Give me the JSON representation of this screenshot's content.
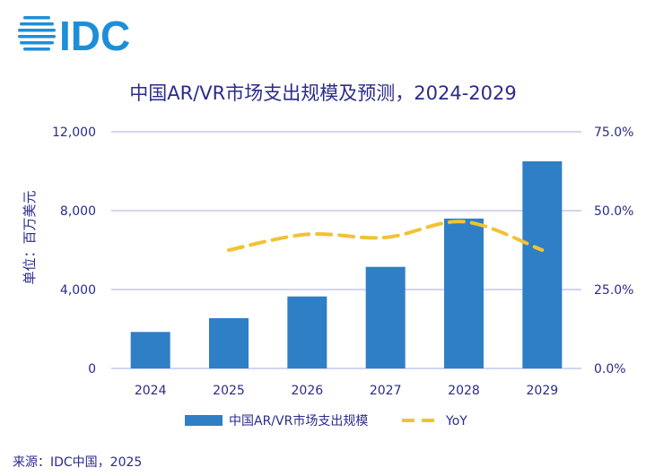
{
  "logo": {
    "text": "IDC"
  },
  "source_text": "来源：IDC中国，2025",
  "colors": {
    "bar": "#2e7fc6",
    "line": "#f2c233",
    "text": "#2b2b8c",
    "grid": "#b8bce8",
    "logo": "#1d8fd9"
  },
  "chart_data": {
    "type": "bar",
    "title": "中国AR/VR市场支出规模及预测，2024-2029",
    "categories": [
      "2024",
      "2025",
      "2026",
      "2027",
      "2028",
      "2029"
    ],
    "ylabel": "单位：百万美元",
    "ylim": [
      0,
      12000
    ],
    "yticks": [
      "0",
      "4,000",
      "8,000",
      "12,000"
    ],
    "y2lim": [
      0,
      75
    ],
    "y2ticks": [
      "0.0%",
      "25.0%",
      "50.0%",
      "75.0%"
    ],
    "grid": true,
    "legend_position": "bottom",
    "series": [
      {
        "name": "中国AR/VR市场支出规模",
        "type": "bar",
        "axis": "left",
        "values": [
          1850,
          2550,
          3650,
          5150,
          7600,
          10500
        ]
      },
      {
        "name": "YoY",
        "type": "line",
        "style": "dashed",
        "axis": "right",
        "values": [
          null,
          37.5,
          42.5,
          41.5,
          46.5,
          37.5
        ]
      }
    ]
  }
}
